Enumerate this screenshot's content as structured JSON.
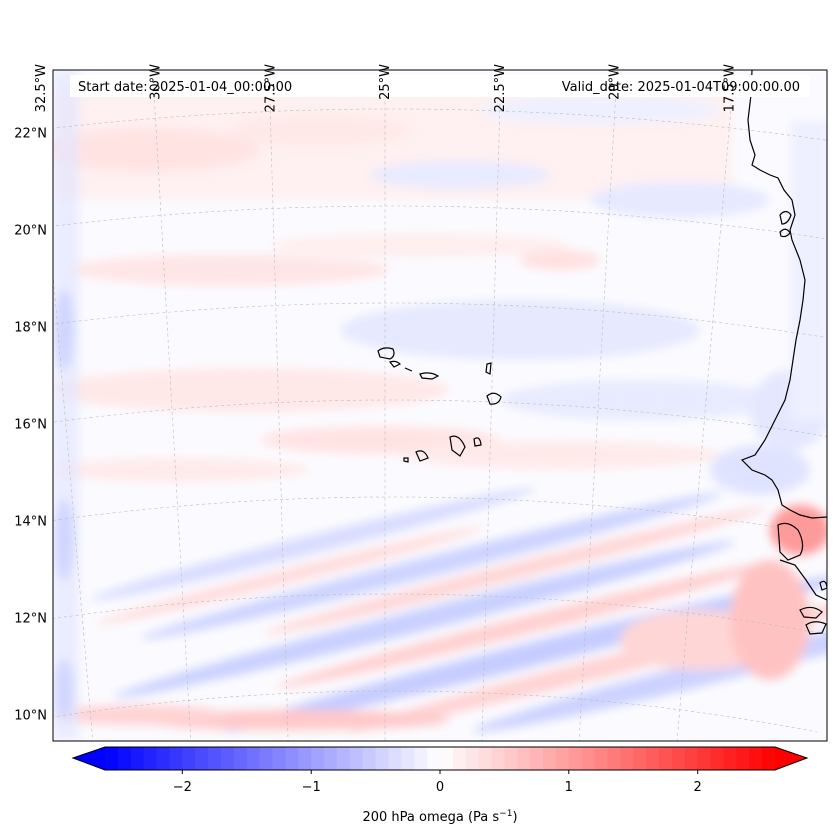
{
  "header": {
    "start_date": "Start date: 2025-01-04_00:00:00",
    "valid_date": "Valid_date: 2025-01-04T09:00:00.00"
  },
  "map": {
    "lon_labels": [
      "32.5°W",
      "30°W",
      "27.5°W",
      "25°W",
      "22.5°W",
      "20°W",
      "17.5°W"
    ],
    "lat_labels": [
      "22°N",
      "20°N",
      "18°N",
      "16°N",
      "14°N",
      "12°N",
      "10°N"
    ],
    "lon_values": [
      -32.5,
      -30,
      -27.5,
      -25,
      -22.5,
      -20,
      -17.5
    ],
    "lat_values": [
      22,
      20,
      18,
      16,
      14,
      12,
      10
    ]
  },
  "colorbar": {
    "label_main": "200 hPa omega (Pa s",
    "label_exp": "−1",
    "label_end": ")",
    "ticks": [
      "−2",
      "−1",
      "0",
      "1",
      "2"
    ],
    "tick_values": [
      -2,
      -1,
      0,
      1,
      2
    ],
    "range": [
      -2.6,
      2.6
    ],
    "colormap": "bwr",
    "levels": 52
  },
  "colors": {
    "negative": "#0000ff",
    "neutral": "#ffffff",
    "positive": "#ff0000",
    "coastline": "#000000",
    "gridline": "#bbbbbb"
  }
}
